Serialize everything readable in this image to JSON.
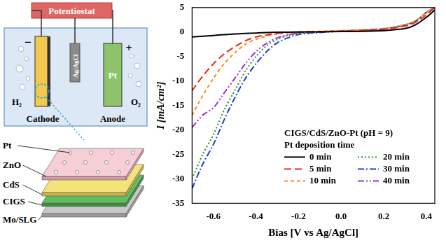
{
  "chart_data": {
    "type": "line",
    "x_label": "Bias [V vs Ag/AgCl]",
    "y_label": "I [mA/cm²]",
    "legend_title": [
      "CIGS/CdS/ZnO-Pt (pH = 9)",
      "Pt deposition time"
    ],
    "legend": "lower right",
    "grid": false,
    "xlim": [
      -0.7,
      0.44
    ],
    "xticks": [
      -0.6,
      -0.4,
      -0.2,
      {
        "value": 0,
        "label": "0.0"
      },
      0.2,
      0.4
    ],
    "ylim": [
      -35,
      5
    ],
    "yticks": [
      -35,
      -30,
      -25,
      -20,
      -15,
      -10,
      -5,
      0,
      5
    ],
    "x": [
      -0.7,
      -0.65,
      -0.6,
      -0.55,
      -0.5,
      -0.45,
      -0.4,
      -0.35,
      -0.3,
      -0.25,
      -0.2,
      -0.1,
      0,
      0.1,
      0.2,
      0.3,
      0.35,
      0.4,
      0.44
    ],
    "series": [
      {
        "name": "0 min",
        "color": "#000000",
        "line_style": "solid",
        "values": [
          -1.0,
          -0.85,
          -0.7,
          -0.55,
          -0.4,
          -0.3,
          -0.2,
          -0.12,
          -0.05,
          -0.02,
          0,
          0.05,
          0.1,
          0.15,
          0.3,
          0.7,
          1.5,
          3,
          4.5
        ]
      },
      {
        "name": "5 min",
        "color": "#e8291c",
        "line_style": "dashed",
        "values": [
          -12,
          -9,
          -6.5,
          -4.5,
          -3,
          -1.8,
          -1,
          -0.6,
          -0.3,
          -0.1,
          0,
          0.1,
          0.2,
          0.35,
          0.6,
          1.2,
          2,
          3.5,
          5
        ]
      },
      {
        "name": "10 min",
        "color": "#ff8c1a",
        "line_style": "short_dashed",
        "values": [
          -17,
          -13,
          -9.5,
          -6.5,
          -4.3,
          -2.5,
          -1.5,
          -0.8,
          -0.4,
          -0.15,
          0,
          0.15,
          0.3,
          0.45,
          0.7,
          1.5,
          2.3,
          4,
          5
        ]
      },
      {
        "name": "20 min",
        "color": "#2e8b22",
        "line_style": "dotted",
        "values": [
          -30,
          -25,
          -21,
          -16,
          -12,
          -8,
          -5,
          -2.8,
          -1.5,
          -0.7,
          -0.3,
          0,
          0.2,
          0.4,
          0.7,
          1.5,
          2.3,
          4,
          5
        ]
      },
      {
        "name": "30 min",
        "color": "#1a3fd6",
        "line_style": "dash_dot",
        "values": [
          -32,
          -27,
          -23,
          -18,
          -13.5,
          -9.5,
          -6.5,
          -4,
          -2.2,
          -1.2,
          -0.5,
          -0.1,
          0.2,
          0.35,
          0.6,
          1.4,
          2.2,
          4,
          5
        ]
      },
      {
        "name": "40 min",
        "color": "#9b30d9",
        "line_style": "dash_dot_dot",
        "values": [
          -19.5,
          -17,
          -15.5,
          -12.5,
          -9.5,
          -6.5,
          -4,
          -2.3,
          -1.2,
          -0.6,
          -0.2,
          0,
          0.2,
          0.35,
          0.6,
          1.4,
          2.2,
          4,
          5
        ]
      }
    ]
  },
  "diagram": {
    "potentiostat": "Potentiostat",
    "cathode": "Cathode",
    "cathode_sign": "−",
    "anode": "Anode",
    "anode_sign": "+",
    "anode_material": "Pt",
    "reference": "Ag/AgCl",
    "cathode_gas": "H₂",
    "anode_gas": "O₂",
    "layers": [
      "Pt",
      "ZnO",
      "CdS",
      "CIGS",
      "Mo/SLG"
    ]
  }
}
